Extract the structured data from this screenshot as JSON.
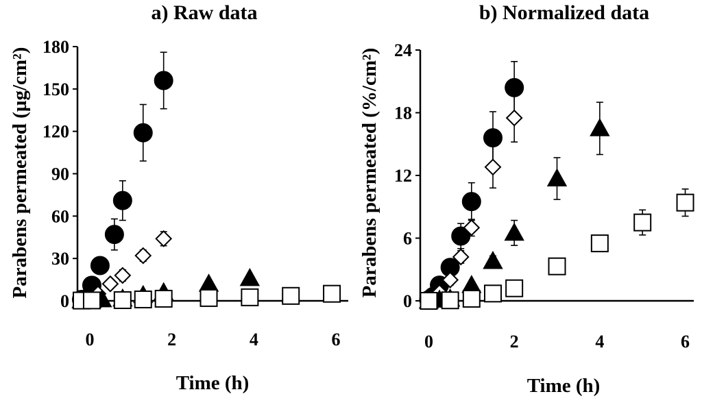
{
  "chart_data": [
    {
      "type": "scatter",
      "title": "a) Raw data",
      "xlabel": "Time (h)",
      "ylabel": "Parabens permeated (µg/cm²)",
      "xlim": [
        -0.3,
        6.3
      ],
      "ylim": [
        0,
        180
      ],
      "xticks": [
        "0",
        "2",
        "4",
        "6"
      ],
      "yticks": [
        "0",
        "30",
        "60",
        "90",
        "120",
        "150",
        "180"
      ],
      "series": [
        {
          "name": "filled-circle",
          "marker": "circle",
          "fill": "#000000",
          "points": [
            [
              -0.2,
              1,
              0
            ],
            [
              0,
              3,
              1
            ],
            [
              0.05,
              11,
              3
            ],
            [
              0.25,
              25,
              5
            ],
            [
              0.6,
              47,
              11
            ],
            [
              0.8,
              71,
              14
            ],
            [
              1.3,
              119,
              20
            ],
            [
              1.8,
              156,
              20
            ]
          ]
        },
        {
          "name": "open-diamond",
          "marker": "diamond",
          "fill": "#ffffff",
          "points": [
            [
              -0.2,
              0.5,
              0
            ],
            [
              0,
              2,
              1
            ],
            [
              0.2,
              5,
              2
            ],
            [
              0.5,
              12,
              3
            ],
            [
              0.8,
              18,
              4
            ],
            [
              1.3,
              32,
              4
            ],
            [
              1.8,
              44,
              5
            ]
          ]
        },
        {
          "name": "filled-triangle",
          "marker": "triangle",
          "fill": "#000000",
          "points": [
            [
              -0.2,
              0.3,
              0
            ],
            [
              0.05,
              0.5,
              0
            ],
            [
              0.3,
              1,
              0
            ],
            [
              0.8,
              1.5,
              0
            ],
            [
              1.3,
              4,
              1
            ],
            [
              1.8,
              6,
              1
            ],
            [
              2.9,
              12,
              2
            ],
            [
              3.9,
              16,
              2
            ]
          ]
        },
        {
          "name": "open-square",
          "marker": "square",
          "fill": "#ffffff",
          "points": [
            [
              -0.2,
              0.2,
              0
            ],
            [
              0.05,
              0.3,
              0
            ],
            [
              0.8,
              0.5,
              0
            ],
            [
              1.3,
              1,
              0
            ],
            [
              1.8,
              1.5,
              0
            ],
            [
              2.9,
              2,
              1
            ],
            [
              3.9,
              2.5,
              1
            ],
            [
              4.9,
              3.5,
              1.5
            ],
            [
              5.9,
              5,
              2
            ]
          ]
        }
      ]
    },
    {
      "type": "scatter",
      "title": "b) Normalized data",
      "xlabel": "Time (h)",
      "ylabel": "Parabens permeated (%/cm²)",
      "xlim": [
        -0.2,
        6.2
      ],
      "ylim": [
        0,
        24
      ],
      "xticks": [
        "0",
        "2",
        "4",
        "6"
      ],
      "yticks": [
        "0",
        "6",
        "12",
        "18",
        "24"
      ],
      "series": [
        {
          "name": "filled-circle",
          "marker": "circle",
          "fill": "#000000",
          "points": [
            [
              0,
              0.1,
              0
            ],
            [
              0.1,
              0.4,
              0
            ],
            [
              0.25,
              1.5,
              0.3
            ],
            [
              0.5,
              3.2,
              0.5
            ],
            [
              0.75,
              6.2,
              1.2
            ],
            [
              1,
              9.5,
              1.8
            ],
            [
              1.5,
              15.6,
              2.5
            ],
            [
              2,
              20.4,
              2.5
            ]
          ]
        },
        {
          "name": "open-diamond",
          "marker": "diamond",
          "fill": "#ffffff",
          "points": [
            [
              0,
              0,
              0
            ],
            [
              0.1,
              0.3,
              0
            ],
            [
              0.25,
              0.8,
              0.3
            ],
            [
              0.5,
              2,
              0.5
            ],
            [
              0.75,
              4.2,
              0.6
            ],
            [
              1,
              7,
              0.8
            ],
            [
              1.5,
              12.8,
              2
            ],
            [
              2,
              17.5,
              2.3
            ]
          ]
        },
        {
          "name": "filled-triangle",
          "marker": "triangle",
          "fill": "#000000",
          "points": [
            [
              0,
              0,
              0
            ],
            [
              0.25,
              0.1,
              0
            ],
            [
              0.5,
              0.2,
              0
            ],
            [
              1,
              1.5,
              0.3
            ],
            [
              1.5,
              3.8,
              0.5
            ],
            [
              2,
              6.5,
              1.2
            ],
            [
              3,
              11.7,
              2
            ],
            [
              4,
              16.5,
              2.5
            ]
          ]
        },
        {
          "name": "open-square",
          "marker": "square",
          "fill": "#ffffff",
          "points": [
            [
              0,
              0,
              0
            ],
            [
              0.5,
              0.05,
              0
            ],
            [
              1,
              0.2,
              0
            ],
            [
              1.5,
              0.7,
              0.3
            ],
            [
              2,
              1.2,
              0.6
            ],
            [
              3,
              3.3,
              0.7
            ],
            [
              4,
              5.5,
              0.5
            ],
            [
              5,
              7.5,
              1.2
            ],
            [
              6,
              9.4,
              1.3
            ]
          ]
        }
      ]
    }
  ]
}
